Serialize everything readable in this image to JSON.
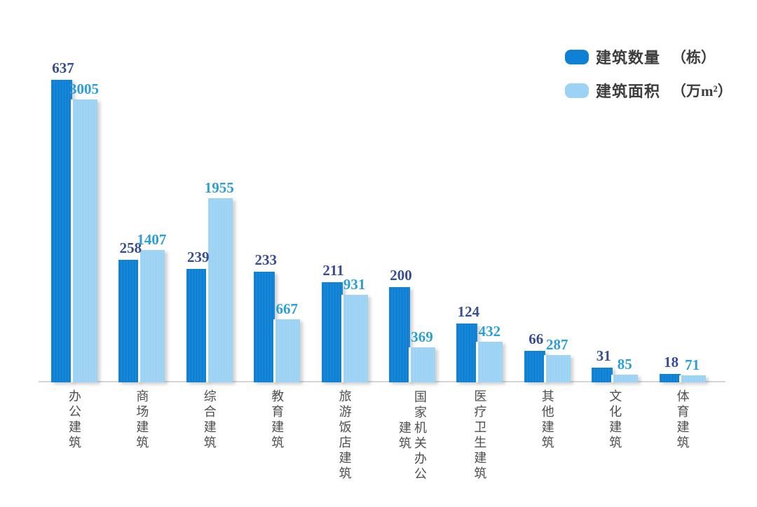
{
  "chart_data": {
    "type": "bar",
    "title": "",
    "categories": [
      "办公建筑",
      "商场建筑",
      "综合建筑",
      "教育建筑",
      "旅游饭店建筑",
      "国家机关办公建筑",
      "医疗卫生建筑",
      "其他建筑",
      "文化建筑",
      "体育建筑"
    ],
    "series": [
      {
        "name": "建筑数量",
        "unit": "（栋）",
        "values": [
          637,
          258,
          239,
          233,
          211,
          200,
          124,
          66,
          31,
          18
        ],
        "color": "#0f81d5",
        "label_color": "#374f92",
        "axis_range": [
          0,
          637
        ]
      },
      {
        "name": "建筑面积",
        "unit": "（万m²）",
        "values": [
          3005,
          1407,
          1955,
          667,
          931,
          369,
          432,
          287,
          85,
          71
        ],
        "color": "#9cd2f3",
        "label_color": "#2b9fd6",
        "axis_range": [
          0,
          3005
        ]
      }
    ],
    "legend_position": "top-right",
    "grid": false,
    "y_axis_visible": false,
    "x_baseline_visible": true,
    "note": "series plotted on independent scales; value labels shown above each bar"
  },
  "colors": {
    "background": "#ffffff",
    "axis_line": "#d5d5d5",
    "category_label": "#4f4f4f",
    "legend_text": "#3d3d3d"
  }
}
